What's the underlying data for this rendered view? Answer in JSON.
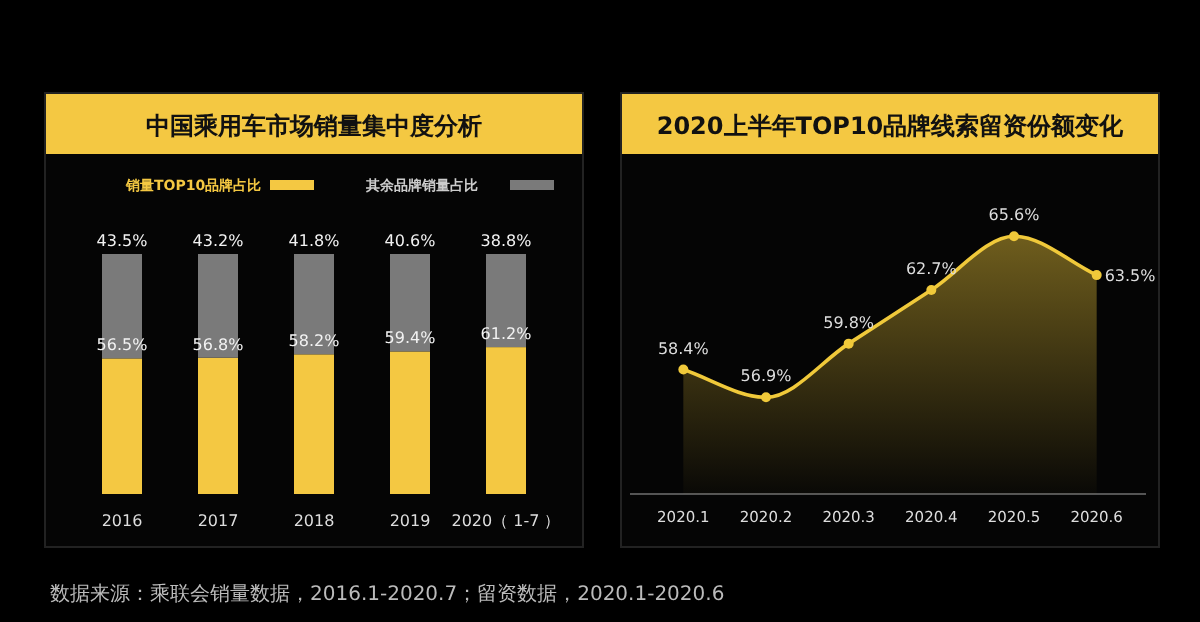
{
  "chart_data": [
    {
      "type": "bar",
      "title": "中国乘用车市场销量集中度分析",
      "categories": [
        "2016",
        "2017",
        "2018",
        "2019",
        "2020（ 1-7 ）"
      ],
      "stacked": true,
      "legend": "top",
      "ylim": [
        0,
        100
      ],
      "series": [
        {
          "name": "销量TOP10品牌占比",
          "color": "#f4c842",
          "values": [
            56.5,
            56.8,
            58.2,
            59.4,
            61.2
          ],
          "value_labels": [
            "56.5%",
            "56.8%",
            "58.2%",
            "59.4%",
            "61.2%"
          ]
        },
        {
          "name": "其余品牌销量占比",
          "color": "#7a7a7a",
          "values": [
            43.5,
            43.2,
            41.8,
            40.6,
            38.8
          ],
          "value_labels": [
            "43.5%",
            "43.2%",
            "41.8%",
            "40.6%",
            "38.8%"
          ]
        }
      ],
      "annotations": [
        "数据来源：乘联会销量数据，2016.1-2020.7；留资数据，2020.1-2020.6"
      ]
    },
    {
      "type": "area",
      "title": "2020上半年TOP10品牌线索留资份额变化",
      "categories": [
        "2020.1",
        "2020.2",
        "2020.3",
        "2020.4",
        "2020.5",
        "2020.6"
      ],
      "marker": "circle",
      "series": [
        {
          "color": "#f0c93a",
          "values": [
            58.4,
            56.9,
            59.8,
            62.7,
            65.6,
            63.5
          ],
          "value_labels": [
            "58.4%",
            "56.9%",
            "59.8%",
            "62.7%",
            "65.6%",
            "63.5%"
          ]
        }
      ]
    }
  ]
}
